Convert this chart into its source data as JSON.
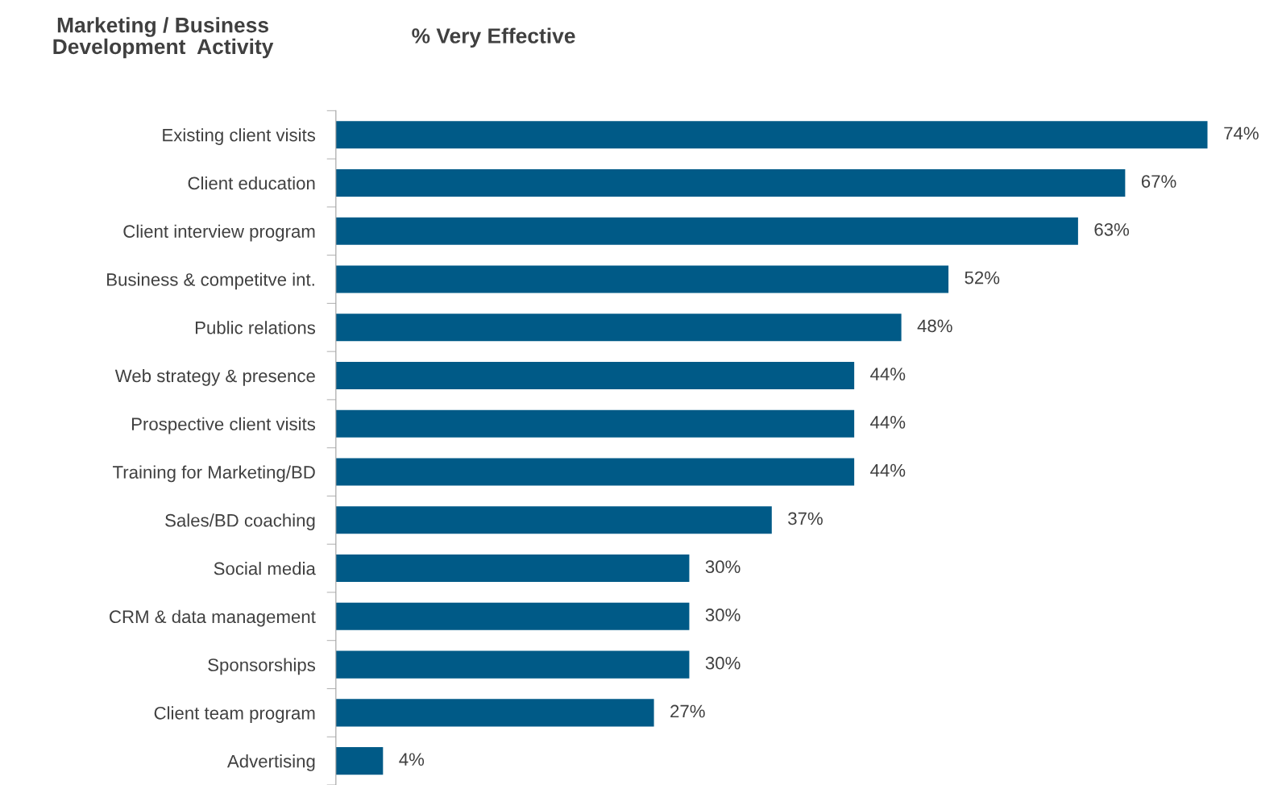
{
  "chart_data": {
    "type": "bar",
    "orientation": "horizontal",
    "title": "% Very Effective",
    "ylabel": "Marketing / Business\nDevelopment  Activity",
    "categories": [
      "Existing client visits",
      "Client education",
      "Client interview program",
      "Business & competitve int.",
      "Public relations",
      "Web strategy & presence",
      "Prospective client visits",
      "Training for Marketing/BD",
      "Sales/BD coaching",
      "Social media",
      "CRM & data management",
      "Sponsorships",
      "Client team program",
      "Advertising"
    ],
    "values": [
      74,
      67,
      63,
      52,
      48,
      44,
      44,
      44,
      37,
      30,
      30,
      30,
      27,
      4
    ],
    "value_labels": [
      "74%",
      "67%",
      "63%",
      "52%",
      "48%",
      "44%",
      "44%",
      "44%",
      "37%",
      "30%",
      "30%",
      "30%",
      "27%",
      "4%"
    ],
    "color": "#005a87",
    "grid": false,
    "legend": false
  }
}
